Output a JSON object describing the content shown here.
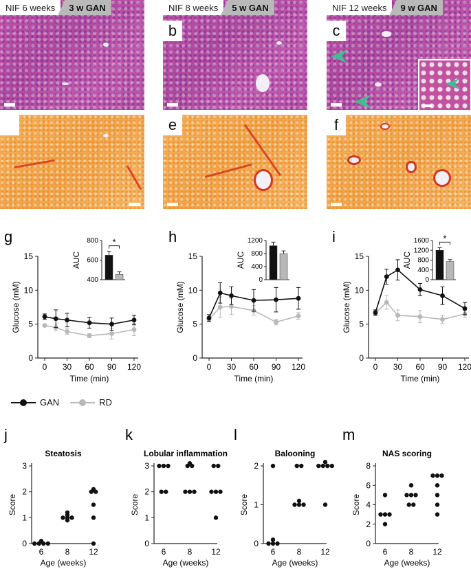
{
  "panels_top": [
    {
      "nif": "NIF 6 weeks",
      "gan": "3 w GAN",
      "letter_he": "",
      "letter_sr": ""
    },
    {
      "nif": "NIF 8 weeks",
      "gan": "5 w GAN",
      "letter_he": "b",
      "letter_sr": "e"
    },
    {
      "nif": "NIF 12 weeks",
      "gan": "9 w GAN",
      "letter_he": "c",
      "letter_sr": "f"
    }
  ],
  "colors": {
    "gan": "#111111",
    "rd": "#b8b8b8",
    "arrow": "#3fbf8f"
  },
  "legend": {
    "gan": "GAN",
    "rd": "RD"
  },
  "chart_data": [
    {
      "panel": "g",
      "type": "line",
      "xlabel": "Time (min)",
      "ylabel": "Glucose (mM)",
      "x": [
        0,
        15,
        30,
        60,
        90,
        120
      ],
      "xticks": [
        "0",
        "30",
        "60",
        "90",
        "120"
      ],
      "ylim": [
        0,
        15
      ],
      "yticks": [
        "0",
        "5",
        "10",
        "15"
      ],
      "series": [
        {
          "name": "GAN",
          "values": [
            6.1,
            5.8,
            5.6,
            5.2,
            5.0,
            5.6
          ],
          "err": [
            0.4,
            1.3,
            1.0,
            0.8,
            0.9,
            0.7
          ]
        },
        {
          "name": "RD",
          "values": [
            4.8,
            4.5,
            3.9,
            3.3,
            3.6,
            4.2
          ],
          "err": [
            0.2,
            0.5,
            0.4,
            0.3,
            0.8,
            0.9
          ]
        }
      ],
      "inset": {
        "ylabel": "AUC",
        "ylim": [
          400,
          800
        ],
        "yticks": [
          "400",
          "600",
          "800"
        ],
        "values": [
          650,
          455
        ],
        "err": [
          40,
          25
        ],
        "sig": "*"
      }
    },
    {
      "panel": "h",
      "type": "line",
      "xlabel": "Time (min)",
      "ylabel": "Glucose (mM)",
      "x": [
        0,
        15,
        30,
        60,
        90,
        120
      ],
      "xticks": [
        "0",
        "30",
        "60",
        "90",
        "120"
      ],
      "ylim": [
        0,
        15
      ],
      "yticks": [
        "0",
        "5",
        "10",
        "15"
      ],
      "series": [
        {
          "name": "GAN",
          "values": [
            5.9,
            9.6,
            9.2,
            8.5,
            8.6,
            8.8
          ],
          "err": [
            0.5,
            1.5,
            1.3,
            1.6,
            1.8,
            1.6
          ]
        },
        {
          "name": "RD",
          "values": [
            5.7,
            7.5,
            7.6,
            7.0,
            5.3,
            6.2
          ],
          "err": [
            0.3,
            1.5,
            1.2,
            0.7,
            0.4,
            0.5
          ]
        }
      ],
      "inset": {
        "ylabel": "AUC",
        "ylim": [
          0,
          1200
        ],
        "yticks": [
          "0",
          "400",
          "800",
          "1200"
        ],
        "values": [
          1040,
          800
        ],
        "err": [
          110,
          80
        ],
        "sig": ""
      }
    },
    {
      "panel": "i",
      "type": "line",
      "xlabel": "Time (min)",
      "ylabel": "Glucose (mM)",
      "x": [
        0,
        15,
        30,
        60,
        90,
        120
      ],
      "xticks": [
        "0",
        "30",
        "60",
        "90",
        "120"
      ],
      "ylim": [
        0,
        15
      ],
      "yticks": [
        "0",
        "5",
        "10",
        "15"
      ],
      "series": [
        {
          "name": "GAN",
          "values": [
            6.7,
            12.0,
            13.0,
            10.1,
            9.2,
            7.3
          ],
          "err": [
            0.4,
            1.1,
            1.5,
            0.9,
            1.3,
            0.9
          ]
        },
        {
          "name": "RD",
          "values": [
            6.6,
            8.2,
            6.3,
            6.1,
            5.7,
            6.5
          ],
          "err": [
            0.3,
            1.0,
            0.8,
            0.9,
            0.6,
            0.5
          ]
        }
      ],
      "inset": {
        "ylabel": "AUC",
        "ylim": [
          0,
          1600
        ],
        "yticks": [
          "0",
          "400",
          "800",
          "1200",
          "1600"
        ],
        "values": [
          1200,
          740
        ],
        "err": [
          110,
          80
        ],
        "sig": "*"
      }
    },
    {
      "panel": "j",
      "type": "scatter",
      "title": "Steatosis",
      "xlabel": "Age (weeks)",
      "ylabel": "Score",
      "categories": [
        "6",
        "8",
        "12"
      ],
      "ylim": [
        0,
        3
      ],
      "yticks": [
        "0",
        "1",
        "2",
        "3"
      ],
      "points": [
        [
          0,
          0,
          0,
          0,
          0.1
        ],
        [
          1.2,
          1.1,
          1,
          1,
          1,
          0.9
        ],
        [
          2.1,
          2,
          2,
          1.5,
          1,
          0
        ]
      ]
    },
    {
      "panel": "k",
      "type": "scatter",
      "title": "Lobular inflammation",
      "xlabel": "Age (weeks)",
      "ylabel": "Score",
      "categories": [
        "6",
        "8",
        "12"
      ],
      "ylim": [
        0,
        3
      ],
      "yticks": [
        "0",
        "1",
        "2",
        "3"
      ],
      "points": [
        [
          3,
          3,
          3,
          2,
          2
        ],
        [
          3.1,
          3,
          3,
          2,
          2,
          2
        ],
        [
          3,
          3,
          2,
          2,
          2,
          1
        ]
      ]
    },
    {
      "panel": "l",
      "type": "scatter",
      "title": "Balooning",
      "xlabel": "Age (weeks)",
      "ylabel": "Score",
      "categories": [
        "6",
        "8",
        "12"
      ],
      "ylim": [
        0,
        2
      ],
      "yticks": [
        "0",
        "1",
        "2"
      ],
      "points": [
        [
          2,
          0.1,
          0,
          0,
          0
        ],
        [
          2,
          2,
          1.1,
          1,
          1,
          1
        ],
        [
          2.1,
          2,
          2,
          2,
          2,
          1
        ]
      ]
    },
    {
      "panel": "m",
      "type": "scatter",
      "title": "NAS scoring",
      "xlabel": "Age (weeks)",
      "ylabel": "Score",
      "categories": [
        "6",
        "8",
        "12"
      ],
      "ylim": [
        0,
        8
      ],
      "yticks": [
        "0",
        "2",
        "4",
        "6",
        "8"
      ],
      "points": [
        [
          5,
          3,
          3,
          3,
          2
        ],
        [
          6,
          5,
          5,
          5,
          4,
          4
        ],
        [
          7,
          7,
          7,
          6,
          5,
          4,
          3
        ]
      ]
    }
  ]
}
